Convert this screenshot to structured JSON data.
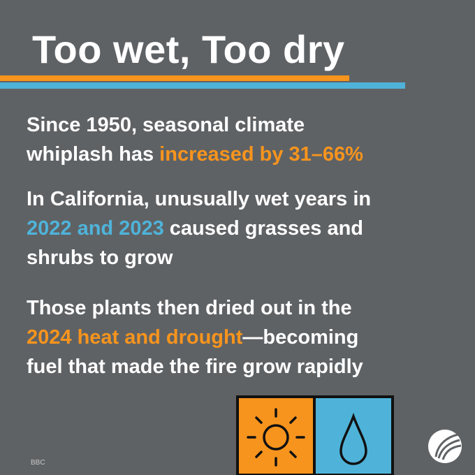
{
  "title": "Too wet, Too dry",
  "paragraphs": [
    {
      "lines": [
        [
          {
            "text": "Since 1950, seasonal climate"
          }
        ],
        [
          {
            "text": "whiplash has "
          },
          {
            "text": "increased by 31–66%",
            "color": "#f7941d"
          }
        ]
      ]
    },
    {
      "lines": [
        [
          {
            "text": "In California, unusually wet years in"
          }
        ],
        [
          {
            "text": "2022 and 2023",
            "color": "#4fb3d9"
          },
          {
            "text": " caused grasses and"
          }
        ],
        [
          {
            "text": "shrubs to grow"
          }
        ]
      ]
    },
    {
      "lines": [
        [
          {
            "text": "Those plants then dried out in the"
          }
        ],
        [
          {
            "text": "2024 heat and drought",
            "color": "#f7941d"
          },
          {
            "text": "—becoming"
          }
        ],
        [
          {
            "text": "fuel that made the fire grow rapidly"
          }
        ]
      ]
    }
  ],
  "source": "BBC"
}
